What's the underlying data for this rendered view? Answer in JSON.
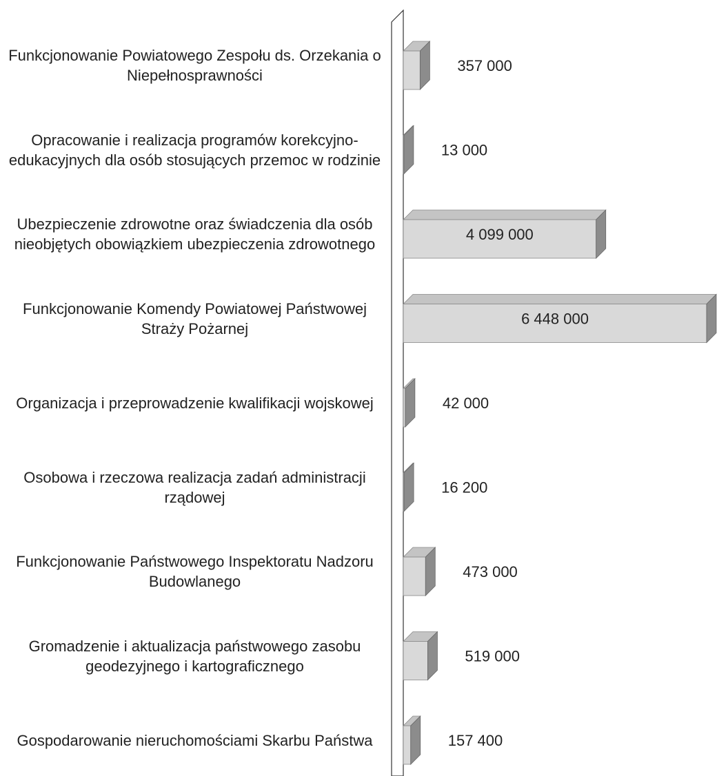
{
  "chart_data": {
    "type": "bar3d-horizontal",
    "categories": [
      "Funkcjonowanie Powiatowego Zespołu ds. Orzekania o Niepełnosprawności",
      "Opracowanie i realizacja programów korekcyjno-edukacyjnych dla osób stosujących przemoc w rodzinie",
      "Ubezpieczenie zdrowotne oraz świadczenia dla osób nieobjętych obowiązkiem ubezpieczenia zdrowotnego",
      "Funkcjonowanie Komendy Powiatowej Państwowej Straży Pożarnej",
      "Organizacja i przeprowadzenie kwalifikacji wojskowej",
      "Osobowa i rzeczowa realizacja zadań administracji rządowej",
      "Funkcjonowanie Państwowego Inspektoratu Nadzoru Budowlanego",
      "Gromadzenie i aktualizacja państwowego zasobu geodezyjnego i kartograficznego",
      "Gospodarowanie nieruchomościami Skarbu Państwa"
    ],
    "values": [
      357000,
      13000,
      4099000,
      6448000,
      42000,
      16200,
      473000,
      519000,
      157400
    ],
    "value_labels": [
      "357 000",
      "13 000",
      "4 099 000",
      "6 448 000",
      "42 000",
      "16 200",
      "473 000",
      "519 000",
      "157 400"
    ],
    "color": "#d9d9d9"
  }
}
